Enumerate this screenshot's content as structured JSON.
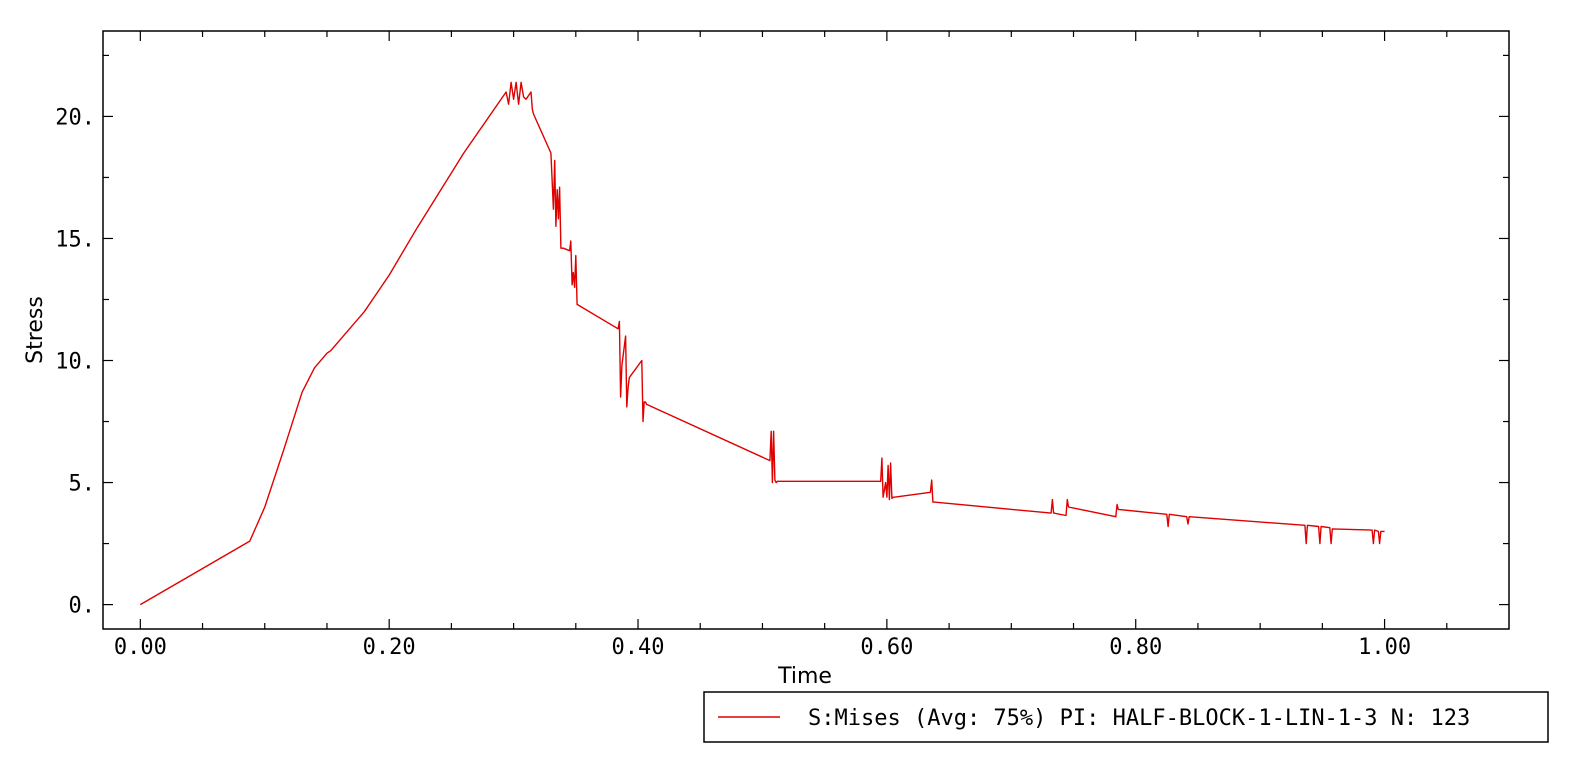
{
  "chart_data": {
    "type": "line",
    "xlabel": "Time",
    "ylabel": "Stress",
    "xlim": [
      -0.03,
      1.1
    ],
    "ylim": [
      -1.0,
      23.5
    ],
    "x_ticks": [
      {
        "value": 0.0,
        "label": "0.00"
      },
      {
        "value": 0.2,
        "label": "0.20"
      },
      {
        "value": 0.4,
        "label": "0.40"
      },
      {
        "value": 0.6,
        "label": "0.60"
      },
      {
        "value": 0.8,
        "label": "0.80"
      },
      {
        "value": 1.0,
        "label": "1.00"
      }
    ],
    "y_ticks": [
      {
        "value": 0,
        "label": "0."
      },
      {
        "value": 5,
        "label": "5."
      },
      {
        "value": 10,
        "label": "10."
      },
      {
        "value": 15,
        "label": "15."
      },
      {
        "value": 20,
        "label": "20."
      }
    ],
    "grid": false,
    "legend_position": "bottom-right",
    "series": [
      {
        "name": "S:Mises (Avg: 75%) PI: HALF-BLOCK-1-LIN-1-3 N: 123",
        "color": "#e00000",
        "x": [
          0.0,
          0.088,
          0.1,
          0.115,
          0.13,
          0.14,
          0.15,
          0.153,
          0.18,
          0.2,
          0.222,
          0.26,
          0.294,
          0.296,
          0.298,
          0.3,
          0.302,
          0.304,
          0.306,
          0.308,
          0.31,
          0.314,
          0.315,
          0.316,
          0.33,
          0.332,
          0.333,
          0.334,
          0.335,
          0.336,
          0.337,
          0.338,
          0.34,
          0.345,
          0.346,
          0.347,
          0.348,
          0.349,
          0.35,
          0.351,
          0.384,
          0.385,
          0.386,
          0.387,
          0.39,
          0.391,
          0.392,
          0.393,
          0.403,
          0.404,
          0.405,
          0.406,
          0.407,
          0.506,
          0.507,
          0.508,
          0.509,
          0.51,
          0.511,
          0.512,
          0.595,
          0.596,
          0.597,
          0.598,
          0.599,
          0.6,
          0.601,
          0.602,
          0.603,
          0.604,
          0.605,
          0.606,
          0.635,
          0.636,
          0.637,
          0.638,
          0.732,
          0.733,
          0.734,
          0.744,
          0.745,
          0.746,
          0.784,
          0.785,
          0.786,
          0.825,
          0.826,
          0.827,
          0.841,
          0.842,
          0.843,
          0.936,
          0.937,
          0.938,
          0.947,
          0.948,
          0.949,
          0.956,
          0.957,
          0.958,
          0.99,
          0.991,
          0.992,
          0.995,
          0.996,
          0.997,
          1.0
        ],
        "y": [
          0.0,
          2.6,
          4.0,
          6.3,
          8.7,
          9.7,
          10.3,
          10.4,
          12.0,
          13.5,
          15.4,
          18.5,
          21.0,
          20.5,
          21.4,
          20.7,
          21.4,
          20.5,
          21.4,
          20.8,
          20.7,
          21.0,
          20.3,
          20.1,
          18.5,
          16.2,
          18.2,
          15.5,
          17.0,
          15.8,
          17.1,
          14.6,
          14.6,
          14.5,
          14.9,
          13.1,
          13.6,
          13.0,
          14.3,
          12.3,
          11.3,
          11.6,
          8.5,
          9.8,
          11.0,
          8.1,
          8.9,
          9.3,
          10.0,
          7.5,
          8.3,
          8.3,
          8.2,
          5.9,
          7.1,
          5.0,
          7.1,
          5.1,
          5.0,
          5.05,
          5.05,
          6.0,
          4.4,
          4.7,
          5.0,
          4.4,
          5.7,
          4.3,
          5.8,
          4.35,
          4.4,
          4.4,
          4.6,
          5.1,
          4.2,
          4.2,
          3.75,
          4.3,
          3.75,
          3.65,
          4.3,
          4.0,
          3.6,
          4.1,
          3.9,
          3.7,
          3.2,
          3.7,
          3.6,
          3.3,
          3.6,
          3.25,
          2.5,
          3.25,
          3.2,
          2.5,
          3.2,
          3.15,
          2.5,
          3.1,
          3.05,
          2.5,
          3.05,
          3.0,
          2.5,
          3.0,
          3.0
        ]
      }
    ]
  }
}
